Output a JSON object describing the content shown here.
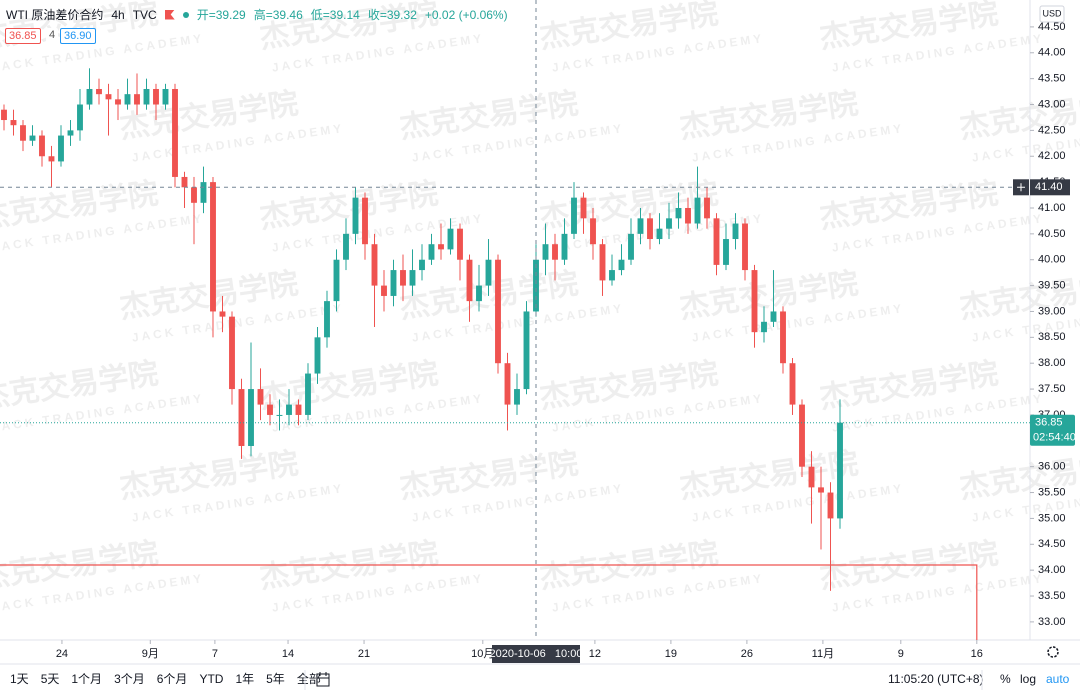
{
  "header": {
    "symbol": "WTI 原油差价合约",
    "interval": "4h",
    "source": "TVC",
    "open": "开=39.29",
    "high": "高=39.46",
    "low": "低=39.14",
    "close": "收=39.32",
    "change": "+0.02 (+0.06%)",
    "bid": "36.85",
    "spread": "4",
    "ask": "36.90"
  },
  "watermark": {
    "cn": "杰克交易学院",
    "en": "JACK TRADING ACADEMY"
  },
  "toolbar": {
    "ranges": [
      "1天",
      "5天",
      "1个月",
      "3个月",
      "6个月",
      "YTD",
      "1年",
      "5年",
      "全部"
    ],
    "clock": "11:05:20 (UTC+8)",
    "percent": "%",
    "log": "log",
    "auto": "auto"
  },
  "chart_data": {
    "type": "candlestick",
    "currency": "USD",
    "up_color": "#26a69a",
    "down_color": "#ef5350",
    "grid": false,
    "xlim": [
      -0.42,
      108.0
    ],
    "ylim": [
      32.65,
      45.02
    ],
    "yticks": [
      {
        "value": 33,
        "label": "33.00"
      },
      {
        "value": 33.5,
        "label": "33.50"
      },
      {
        "value": 34,
        "label": "34.00"
      },
      {
        "value": 34.5,
        "label": "34.50"
      },
      {
        "value": 35,
        "label": "35.00"
      },
      {
        "value": 35.5,
        "label": "35.50"
      },
      {
        "value": 36,
        "label": "36.00"
      },
      {
        "value": 36.5,
        "label": "36.50"
      },
      {
        "value": 37,
        "label": "37.00"
      },
      {
        "value": 37.5,
        "label": "37.50"
      },
      {
        "value": 38,
        "label": "38.00"
      },
      {
        "value": 38.5,
        "label": "38.50"
      },
      {
        "value": 39,
        "label": "39.00"
      },
      {
        "value": 39.5,
        "label": "39.50"
      },
      {
        "value": 40,
        "label": "40.00"
      },
      {
        "value": 40.5,
        "label": "40.50"
      },
      {
        "value": 41,
        "label": "41.00"
      },
      {
        "value": 41.5,
        "label": "41.50"
      },
      {
        "value": 42,
        "label": "42.00"
      },
      {
        "value": 42.5,
        "label": "42.50"
      },
      {
        "value": 43,
        "label": "43.00"
      },
      {
        "value": 43.5,
        "label": "43.50"
      },
      {
        "value": 44,
        "label": "44.00"
      },
      {
        "value": 44.5,
        "label": "44.50"
      }
    ],
    "xticks": [
      {
        "value": 6.1,
        "label": "24"
      },
      {
        "value": 15.4,
        "label": "9月"
      },
      {
        "value": 22.2,
        "label": "7"
      },
      {
        "value": 29.9,
        "label": "14"
      },
      {
        "value": 37.9,
        "label": "21"
      },
      {
        "value": 50.4,
        "label": "10月"
      },
      {
        "value": 62.2,
        "label": "12"
      },
      {
        "value": 70.2,
        "label": "19"
      },
      {
        "value": 78.2,
        "label": "26"
      },
      {
        "value": 86.2,
        "label": "11月"
      },
      {
        "value": 94.4,
        "label": "9"
      },
      {
        "value": 102.4,
        "label": "16"
      }
    ],
    "open": [
      42.9,
      42.7,
      42.6,
      42.3,
      42.4,
      42.0,
      41.9,
      42.4,
      42.5,
      43.0,
      43.3,
      43.2,
      43.1,
      43.0,
      43.2,
      43.0,
      43.3,
      43.0,
      43.3,
      41.6,
      41.4,
      41.1,
      41.5,
      39.0,
      38.9,
      37.5,
      36.4,
      37.5,
      37.2,
      37.0,
      37.0,
      37.2,
      37.0,
      37.8,
      38.5,
      39.2,
      40.0,
      40.5,
      41.2,
      40.3,
      39.5,
      39.3,
      39.8,
      39.5,
      39.8,
      40.0,
      40.3,
      40.2,
      40.6,
      40.0,
      39.2,
      39.5,
      40.0,
      38.0,
      37.2,
      37.5,
      39.0,
      40.0,
      40.3,
      40.0,
      40.5,
      41.2,
      40.8,
      40.3,
      39.6,
      39.8,
      40.0,
      40.5,
      40.8,
      40.4,
      40.6,
      40.8,
      41.0,
      40.7,
      41.2,
      40.8,
      39.9,
      40.4,
      40.7,
      39.8,
      38.6,
      38.8,
      39.0,
      38.0,
      37.2,
      36.0,
      35.6,
      35.5,
      35.0
    ],
    "high": [
      43.0,
      42.9,
      42.7,
      42.6,
      42.5,
      42.2,
      42.6,
      42.7,
      43.3,
      43.7,
      43.5,
      43.4,
      43.3,
      43.5,
      43.6,
      43.5,
      43.4,
      43.4,
      43.4,
      41.7,
      41.6,
      41.8,
      41.6,
      39.3,
      39.0,
      37.7,
      38.4,
      37.9,
      37.4,
      37.3,
      37.5,
      37.3,
      38.0,
      38.7,
      39.4,
      40.2,
      40.8,
      41.4,
      41.3,
      40.5,
      39.8,
      40.0,
      40.1,
      40.2,
      40.3,
      40.5,
      40.7,
      40.8,
      40.7,
      40.1,
      39.9,
      40.4,
      40.1,
      38.2,
      37.8,
      39.2,
      40.3,
      40.7,
      40.5,
      40.8,
      41.5,
      41.3,
      41.0,
      40.4,
      40.1,
      40.3,
      40.8,
      41.0,
      40.9,
      40.9,
      41.1,
      41.3,
      41.2,
      41.8,
      41.4,
      40.9,
      40.7,
      40.9,
      40.8,
      39.9,
      39.1,
      39.8,
      39.1,
      38.1,
      37.3,
      36.3,
      36.0,
      35.7,
      37.3
    ],
    "low": [
      42.5,
      42.4,
      42.1,
      42.2,
      41.8,
      41.4,
      41.8,
      42.2,
      42.3,
      42.9,
      43.0,
      42.4,
      42.7,
      42.9,
      42.8,
      42.9,
      42.7,
      42.9,
      41.4,
      41.0,
      40.3,
      40.9,
      38.5,
      38.6,
      37.2,
      36.15,
      36.2,
      36.9,
      36.8,
      36.7,
      36.8,
      36.8,
      36.9,
      37.6,
      38.3,
      39.0,
      39.8,
      40.3,
      40.0,
      38.7,
      39.0,
      39.1,
      39.2,
      39.3,
      39.6,
      39.9,
      40.0,
      40.1,
      39.6,
      38.8,
      39.0,
      39.3,
      37.8,
      36.7,
      37.0,
      37.4,
      38.9,
      39.7,
      39.6,
      39.9,
      40.4,
      40.5,
      40.0,
      39.3,
      39.5,
      39.7,
      39.9,
      40.3,
      40.2,
      40.3,
      40.4,
      40.6,
      40.5,
      40.6,
      40.6,
      39.7,
      39.8,
      40.2,
      39.6,
      38.3,
      38.4,
      38.7,
      37.8,
      37.0,
      35.8,
      34.9,
      34.4,
      33.6,
      34.8
    ],
    "close": [
      42.7,
      42.6,
      42.3,
      42.4,
      42.0,
      41.9,
      42.4,
      42.5,
      43.0,
      43.3,
      43.2,
      43.1,
      43.0,
      43.2,
      43.0,
      43.3,
      43.0,
      43.3,
      41.6,
      41.4,
      41.1,
      41.5,
      39.0,
      38.9,
      37.5,
      36.4,
      37.5,
      37.2,
      37.0,
      37.0,
      37.2,
      37.0,
      37.8,
      38.5,
      39.2,
      40.0,
      40.5,
      41.2,
      40.3,
      39.5,
      39.3,
      39.8,
      39.5,
      39.8,
      40.0,
      40.3,
      40.2,
      40.6,
      40.0,
      39.2,
      39.5,
      40.0,
      38.0,
      37.2,
      37.5,
      39.0,
      40.0,
      40.3,
      40.0,
      40.5,
      41.2,
      40.8,
      40.3,
      39.6,
      39.8,
      40.0,
      40.5,
      40.8,
      40.4,
      40.6,
      40.8,
      41.0,
      40.7,
      41.2,
      40.8,
      39.9,
      40.4,
      40.7,
      39.8,
      38.6,
      38.8,
      39.0,
      38.0,
      37.2,
      36.0,
      35.6,
      35.5,
      35.0,
      36.85
    ],
    "last_price": {
      "value": 36.85,
      "label": "36.85",
      "countdown": "02:54:40"
    },
    "crosshair": {
      "price": {
        "value": 41.4,
        "label": "41.40"
      },
      "x": 56.0,
      "time": "2020-10-06   10:00"
    },
    "level_line": {
      "value": 34.1,
      "end_x": 102.4,
      "color": "#ef5350"
    }
  }
}
